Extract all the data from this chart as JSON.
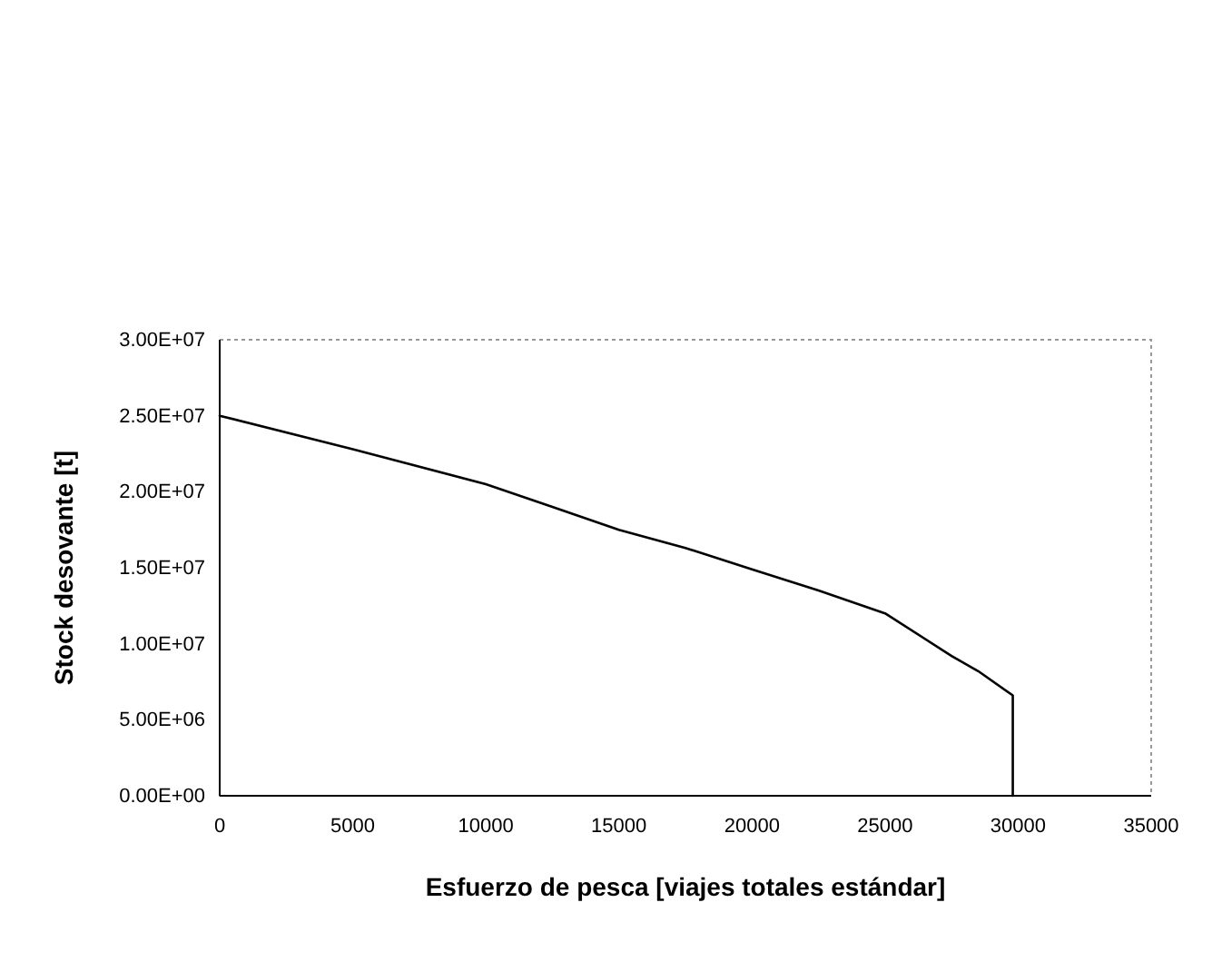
{
  "chart_data": {
    "type": "line",
    "xlabel": "Esfuerzo de pesca [viajes totales estándar]",
    "ylabel": "Stock desovante [t]",
    "x": [
      0,
      5000,
      10000,
      12500,
      15000,
      17500,
      20000,
      22500,
      25000,
      27500,
      28500,
      29800,
      29800
    ],
    "series": [
      {
        "color": "#000000",
        "values": [
          25000000,
          22800000,
          20500000,
          19000000,
          17500000,
          16300000,
          14900000,
          13500000,
          12000000,
          9200000,
          8200000,
          6600000,
          0
        ]
      }
    ],
    "xlim": [
      0,
      35000
    ],
    "xticks": [
      0,
      5000,
      10000,
      15000,
      20000,
      25000,
      30000,
      35000
    ],
    "ylim": [
      0,
      30000000
    ],
    "yticks": [
      {
        "value": 0,
        "label": "0.00E+00"
      },
      {
        "value": 5000000,
        "label": "5.00E+06"
      },
      {
        "value": 10000000,
        "label": "1.00E+07"
      },
      {
        "value": 15000000,
        "label": "1.50E+07"
      },
      {
        "value": 20000000,
        "label": "2.00E+07"
      },
      {
        "value": 25000000,
        "label": "2.50E+07"
      },
      {
        "value": 30000000,
        "label": "3.00E+07"
      }
    ],
    "grid": false,
    "marker": "none",
    "line_style": "solid"
  }
}
